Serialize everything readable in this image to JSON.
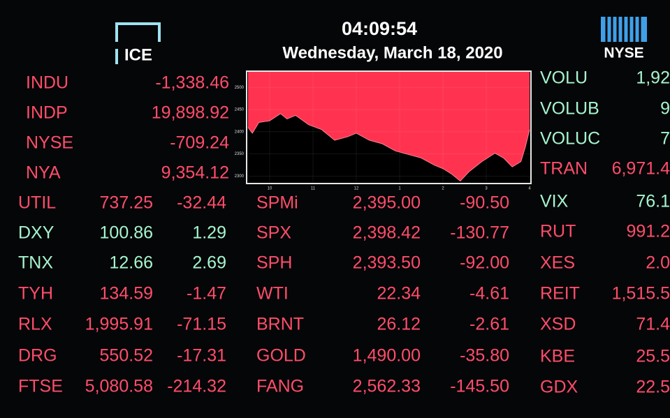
{
  "header": {
    "time": "04:09:54",
    "date": "Wednesday, March 18, 2020",
    "logo_left": "ICE",
    "logo_right": "NYSE"
  },
  "board": {
    "left_top": [
      {
        "symbol": "INDU",
        "value": "-1,338.46"
      },
      {
        "symbol": "INDP",
        "value": "19,898.92"
      },
      {
        "symbol": "NYSE",
        "value": "-709.24"
      },
      {
        "symbol": "NYA",
        "value": "9,354.12"
      }
    ],
    "left": [
      {
        "symbol": "UTIL",
        "last": "737.25",
        "change": "-32.44"
      },
      {
        "symbol": "DXY",
        "last": "100.86",
        "change": "1.29"
      },
      {
        "symbol": "TNX",
        "last": "12.66",
        "change": "2.69"
      },
      {
        "symbol": "TYH",
        "last": "134.59",
        "change": "-1.47"
      },
      {
        "symbol": "RLX",
        "last": "1,995.91",
        "change": "-71.15"
      },
      {
        "symbol": "DRG",
        "last": "550.52",
        "change": "-17.31"
      },
      {
        "symbol": "FTSE",
        "last": "5,080.58",
        "change": "-214.32"
      }
    ],
    "middle": [
      {
        "symbol": "SPMi",
        "last": "2,395.00",
        "change": "-90.50"
      },
      {
        "symbol": "SPX",
        "last": "2,398.42",
        "change": "-130.77"
      },
      {
        "symbol": "SPH",
        "last": "2,393.50",
        "change": "-92.00"
      },
      {
        "symbol": "WTI",
        "last": "22.34",
        "change": "-4.61"
      },
      {
        "symbol": "BRNT",
        "last": "26.12",
        "change": "-2.61"
      },
      {
        "symbol": "GOLD",
        "last": "1,490.00",
        "change": "-35.80"
      },
      {
        "symbol": "FANG",
        "last": "2,562.33",
        "change": "-145.50"
      }
    ],
    "right": [
      {
        "symbol": "VOLU",
        "value": "1,92"
      },
      {
        "symbol": "VOLUB",
        "value": "9"
      },
      {
        "symbol": "VOLUC",
        "value": "7"
      },
      {
        "symbol": "TRAN",
        "value": "6,971.4"
      },
      {
        "symbol": "VIX",
        "value": "76.1"
      },
      {
        "symbol": "RUT",
        "value": "991.2"
      },
      {
        "symbol": "XES",
        "value": "2.0"
      },
      {
        "symbol": "REIT",
        "value": "1,515.5"
      },
      {
        "symbol": "XSD",
        "value": "71.4"
      },
      {
        "symbol": "KBE",
        "value": "25.5"
      },
      {
        "symbol": "GDX",
        "value": "22.5"
      }
    ]
  },
  "chart": {
    "type": "area",
    "color": "#ff3350",
    "x": [
      9.5,
      9.6,
      9.75,
      10.0,
      10.25,
      10.4,
      10.6,
      10.9,
      11.2,
      11.5,
      11.8,
      12.0,
      12.3,
      12.6,
      12.9,
      13.2,
      13.5,
      13.8,
      14.0,
      14.2,
      14.4,
      14.6,
      14.9,
      15.2,
      15.4,
      15.6,
      15.8,
      15.9,
      16.0
    ],
    "values": [
      2410,
      2397,
      2421,
      2425,
      2441,
      2429,
      2437,
      2416,
      2405,
      2381,
      2389,
      2397,
      2381,
      2373,
      2357,
      2349,
      2341,
      2325,
      2317,
      2305,
      2289,
      2310,
      2333,
      2352,
      2341,
      2321,
      2333,
      2365,
      2405
    ],
    "xlim": [
      9.5,
      16
    ],
    "ylim": [
      2285,
      2535
    ],
    "xticks": [
      10,
      11,
      12,
      {
        "value": 13,
        "label": "1"
      },
      {
        "value": 14,
        "label": "2"
      },
      {
        "value": 15,
        "label": "3"
      },
      {
        "value": 16,
        "label": "4"
      }
    ],
    "yticks": [
      2300,
      2350,
      2400,
      2450,
      2500
    ],
    "grid": true
  }
}
